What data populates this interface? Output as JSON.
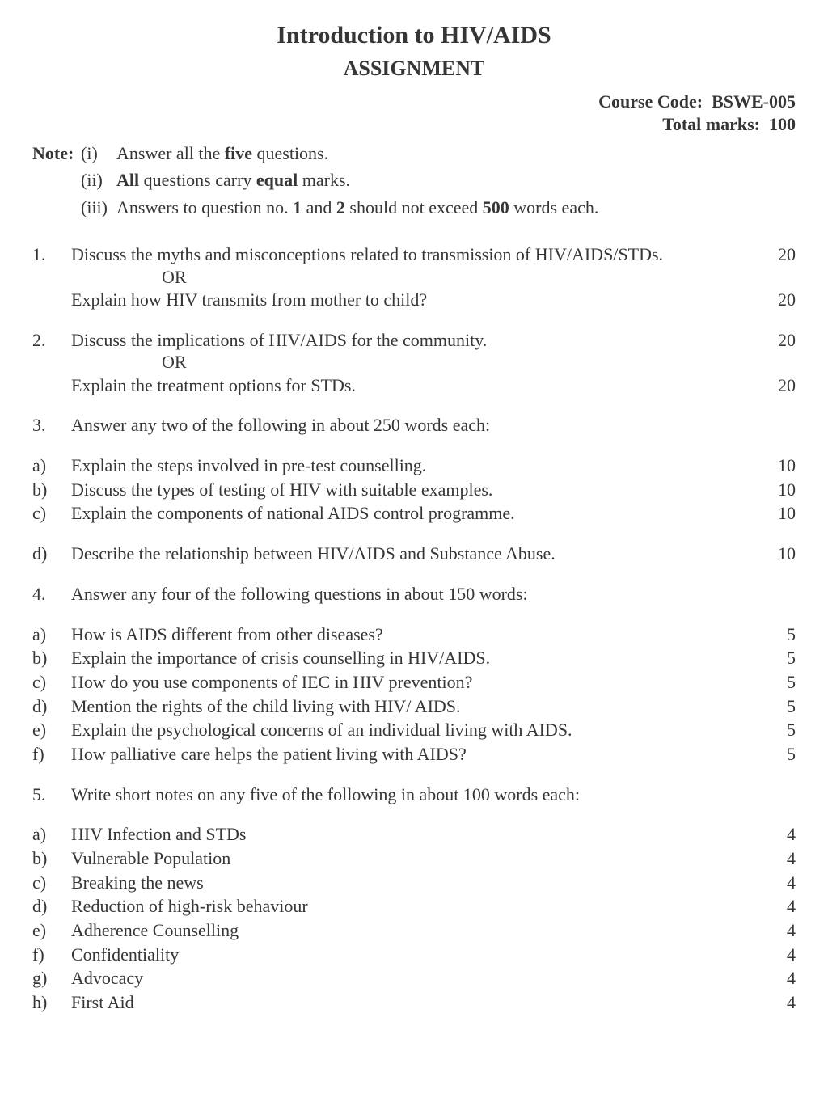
{
  "header": {
    "title": "Introduction to HIV/AIDS",
    "subtitle": "ASSIGNMENT",
    "course_code_label": "Course Code:",
    "course_code": "BSWE-005",
    "total_marks_label": "Total marks:",
    "total_marks": "100"
  },
  "notes": {
    "label": "Note:",
    "items": [
      {
        "num": "(i)",
        "pre": "Answer all the ",
        "bold": "five",
        "post": " questions."
      },
      {
        "num": "(ii)",
        "b1": "All",
        "mid": " questions carry ",
        "b2": "equal",
        "post": " marks."
      },
      {
        "num": "(iii)",
        "pre": "Answers to question no. ",
        "b1": "1",
        "mid1": " and ",
        "b2": "2",
        "mid2": " should not exceed ",
        "b3": "500",
        "post": " words each."
      }
    ]
  },
  "or_text": "OR",
  "q1": {
    "num": "1.",
    "a_text": "Discuss the myths and misconceptions related to transmission of HIV/AIDS/STDs.",
    "a_marks": "20",
    "b_text": "Explain how HIV transmits from mother to child?",
    "b_marks": "20"
  },
  "q2": {
    "num": "2.",
    "a_text": "Discuss the implications of HIV/AIDS for the community.",
    "a_marks": "20",
    "b_text": "Explain the treatment options for STDs.",
    "b_marks": "20"
  },
  "q3": {
    "num": "3.",
    "intro": "Answer any two of the following in about 250 words each:",
    "items": [
      {
        "num": "a)",
        "text": "Explain the steps involved in pre-test counselling.",
        "marks": "10"
      },
      {
        "num": "b)",
        "text": "Discuss the types of testing of HIV with suitable examples.",
        "marks": "10"
      },
      {
        "num": "c)",
        "text": "Explain the components of national AIDS control programme.",
        "marks": "10"
      },
      {
        "num": "d)",
        "text": "Describe the relationship between HIV/AIDS and Substance Abuse.",
        "marks": "10"
      }
    ]
  },
  "q4": {
    "num": "4.",
    "intro": "Answer any four of the following questions in about 150 words:",
    "items": [
      {
        "num": "a)",
        "text": "How is AIDS different from other diseases?",
        "marks": "5"
      },
      {
        "num": "b)",
        "text": "Explain the importance of crisis counselling in HIV/AIDS.",
        "marks": "5"
      },
      {
        "num": "c)",
        "text": "How do you use components of IEC in HIV prevention?",
        "marks": "5"
      },
      {
        "num": "d)",
        "text": "Mention the rights of the child living with HIV/ AIDS.",
        "marks": "5"
      },
      {
        "num": "e)",
        "text": "Explain the psychological concerns of an individual living with AIDS.",
        "marks": "5"
      },
      {
        "num": "f)",
        "text": "How palliative care helps the patient living with AIDS?",
        "marks": "5"
      }
    ]
  },
  "q5": {
    "num": "5.",
    "intro": "Write short notes on any five of the following in about 100 words each:",
    "items": [
      {
        "num": "a)",
        "text": "HIV Infection and STDs",
        "marks": "4"
      },
      {
        "num": "b)",
        "text": "Vulnerable Population",
        "marks": "4"
      },
      {
        "num": "c)",
        "text": "Breaking the news",
        "marks": "4"
      },
      {
        "num": "d)",
        "text": "Reduction of high-risk behaviour",
        "marks": "4"
      },
      {
        "num": "e)",
        "text": "Adherence Counselling",
        "marks": "4"
      },
      {
        "num": "f)",
        "text": "Confidentiality",
        "marks": "4"
      },
      {
        "num": "g)",
        "text": "Advocacy",
        "marks": "4"
      },
      {
        "num": "h)",
        "text": "First Aid",
        "marks": "4"
      }
    ]
  }
}
